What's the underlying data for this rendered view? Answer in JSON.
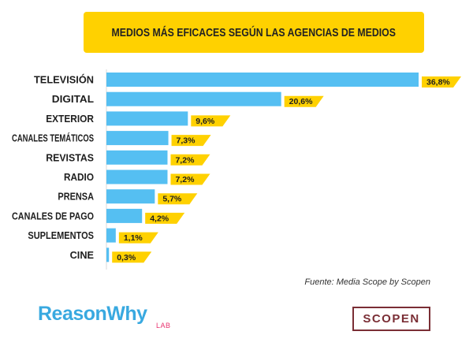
{
  "chart_data": {
    "type": "bar",
    "orientation": "horizontal",
    "title": "MEDIOS MÁS EFICACES SEGÚN LAS AGENCIAS DE MEDIOS",
    "categories": [
      "TELEVISIÓN",
      "DIGITAL",
      "EXTERIOR",
      "CANALES TEMÁTICOS",
      "REVISTAS",
      "RADIO",
      "PRENSA",
      "CANALES DE PAGO",
      "SUPLEMENTOS",
      "CINE"
    ],
    "values": [
      36.8,
      20.6,
      9.6,
      7.3,
      7.2,
      7.2,
      5.7,
      4.2,
      1.1,
      0.3
    ],
    "value_labels": [
      "36,8%",
      "20,6%",
      "9,6%",
      "7,3%",
      "7,2%",
      "7,2%",
      "5,7%",
      "4,2%",
      "1,1%",
      "0,3%"
    ],
    "xlim": [
      0,
      36.8
    ],
    "xlabel": "",
    "ylabel": "",
    "grid": false,
    "bar_color": "#55BFF2",
    "label_tag_color": "#FFD100"
  },
  "source_text": "Fuente: Media Scope by Scopen",
  "brands": {
    "reasonwhy": "ReasonWhy",
    "reasonwhy_sub": "LAB",
    "scopen": "SCOPEN"
  }
}
